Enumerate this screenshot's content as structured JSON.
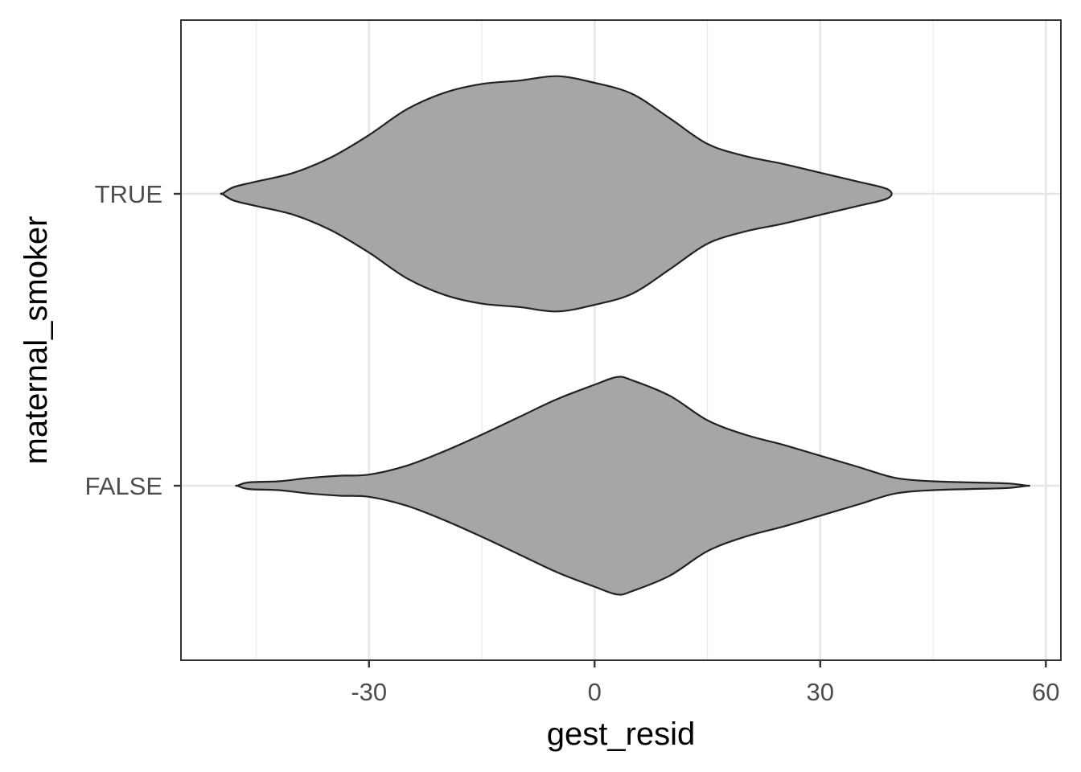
{
  "chart_data": {
    "type": "violin",
    "orientation": "horizontal",
    "xlabel": "gest_resid",
    "ylabel": "maternal_smoker",
    "xlim": [
      -55,
      62
    ],
    "x_ticks": [
      -30,
      0,
      30,
      60
    ],
    "x_tick_labels": [
      "-30",
      "0",
      "30",
      "60"
    ],
    "x_minor_ticks": [
      -45,
      -15,
      15,
      45
    ],
    "categories": [
      "FALSE",
      "TRUE"
    ],
    "grid": true,
    "legend": "none",
    "fill_color": "#a6a6a6",
    "outline_color": "#222222",
    "violins": [
      {
        "category": "TRUE",
        "density": [
          [
            -49.5,
            0.0
          ],
          [
            -48,
            0.06
          ],
          [
            -45,
            0.11
          ],
          [
            -40,
            0.19
          ],
          [
            -35,
            0.33
          ],
          [
            -30,
            0.53
          ],
          [
            -25,
            0.76
          ],
          [
            -20,
            0.91
          ],
          [
            -15,
            0.99
          ],
          [
            -10,
            1.02
          ],
          [
            -5,
            1.06
          ],
          [
            0,
            1.0
          ],
          [
            5,
            0.9
          ],
          [
            10,
            0.68
          ],
          [
            15,
            0.45
          ],
          [
            20,
            0.34
          ],
          [
            25,
            0.27
          ],
          [
            30,
            0.19
          ],
          [
            35,
            0.11
          ],
          [
            39,
            0.04
          ]
        ]
      },
      {
        "category": "FALSE",
        "density": [
          [
            -47.5,
            0.0
          ],
          [
            -46,
            0.03
          ],
          [
            -42,
            0.04
          ],
          [
            -38,
            0.07
          ],
          [
            -34,
            0.09
          ],
          [
            -30,
            0.1
          ],
          [
            -25,
            0.18
          ],
          [
            -20,
            0.31
          ],
          [
            -15,
            0.46
          ],
          [
            -10,
            0.62
          ],
          [
            -5,
            0.78
          ],
          [
            0,
            0.91
          ],
          [
            3,
            0.98
          ],
          [
            5,
            0.95
          ],
          [
            10,
            0.81
          ],
          [
            15,
            0.59
          ],
          [
            20,
            0.46
          ],
          [
            25,
            0.37
          ],
          [
            30,
            0.27
          ],
          [
            35,
            0.17
          ],
          [
            40,
            0.07
          ],
          [
            45,
            0.04
          ],
          [
            50,
            0.03
          ],
          [
            55,
            0.02
          ],
          [
            57.5,
            0.0
          ]
        ]
      }
    ]
  }
}
